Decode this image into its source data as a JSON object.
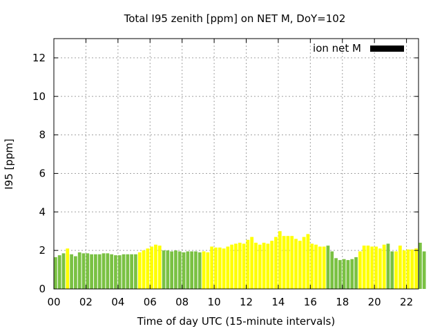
{
  "chart_data": {
    "type": "bar",
    "title": "Total I95 zenith [ppm] on NET M, DoY=102",
    "xlabel": "Time of day UTC (15-minute intervals)",
    "ylabel": "I95 [ppm]",
    "xlim": [
      0,
      22.75
    ],
    "ylim": [
      0,
      13
    ],
    "grid": true,
    "xticks": [
      0,
      2,
      4,
      6,
      8,
      10,
      12,
      14,
      16,
      18,
      20,
      22
    ],
    "xtick_labels": [
      "00",
      "02",
      "04",
      "06",
      "08",
      "10",
      "12",
      "14",
      "16",
      "18",
      "20",
      "22"
    ],
    "yticks": [
      0,
      2,
      4,
      6,
      8,
      10,
      12
    ],
    "ytick_labels": [
      "0",
      "2",
      "4",
      "6",
      "8",
      "10",
      "12"
    ],
    "legend": {
      "label": "ion net M",
      "position": "top-right",
      "color": "#000000"
    },
    "bar_interval_hours": 0.25,
    "colors": {
      "G": "#7ac143",
      "Y": "#ffff00"
    },
    "values": [
      1.65,
      1.75,
      1.85,
      2.1,
      1.8,
      1.7,
      1.9,
      1.85,
      1.85,
      1.8,
      1.8,
      1.8,
      1.85,
      1.85,
      1.8,
      1.75,
      1.75,
      1.8,
      1.8,
      1.8,
      1.8,
      1.9,
      2.0,
      2.1,
      2.2,
      2.3,
      2.25,
      2.0,
      2.0,
      1.95,
      2.0,
      1.95,
      1.9,
      1.95,
      1.95,
      1.95,
      1.9,
      1.95,
      1.9,
      2.2,
      2.15,
      2.15,
      2.1,
      2.2,
      2.3,
      2.35,
      2.4,
      2.35,
      2.55,
      2.7,
      2.4,
      2.3,
      2.4,
      2.35,
      2.5,
      2.7,
      3.0,
      2.75,
      2.75,
      2.75,
      2.6,
      2.5,
      2.7,
      2.85,
      2.35,
      2.3,
      2.2,
      2.2,
      2.25,
      1.95,
      1.6,
      1.5,
      1.55,
      1.5,
      1.55,
      1.65,
      1.95,
      2.25,
      2.25,
      2.2,
      2.2,
      2.1,
      2.3,
      2.35,
      1.95,
      1.95,
      2.25,
      2.0,
      2.05,
      2.05,
      2.1,
      2.4,
      1.95
    ],
    "bar_colors": "GGGYGGGGGGGGGGGGGGGGGYYYYYYGGGGGGGGGGYYYYYYYYYYYYYYYYYYYYYYYYYYYYYYYGGGGGGGGYYYYYYYGGYYYYYYG"
  }
}
